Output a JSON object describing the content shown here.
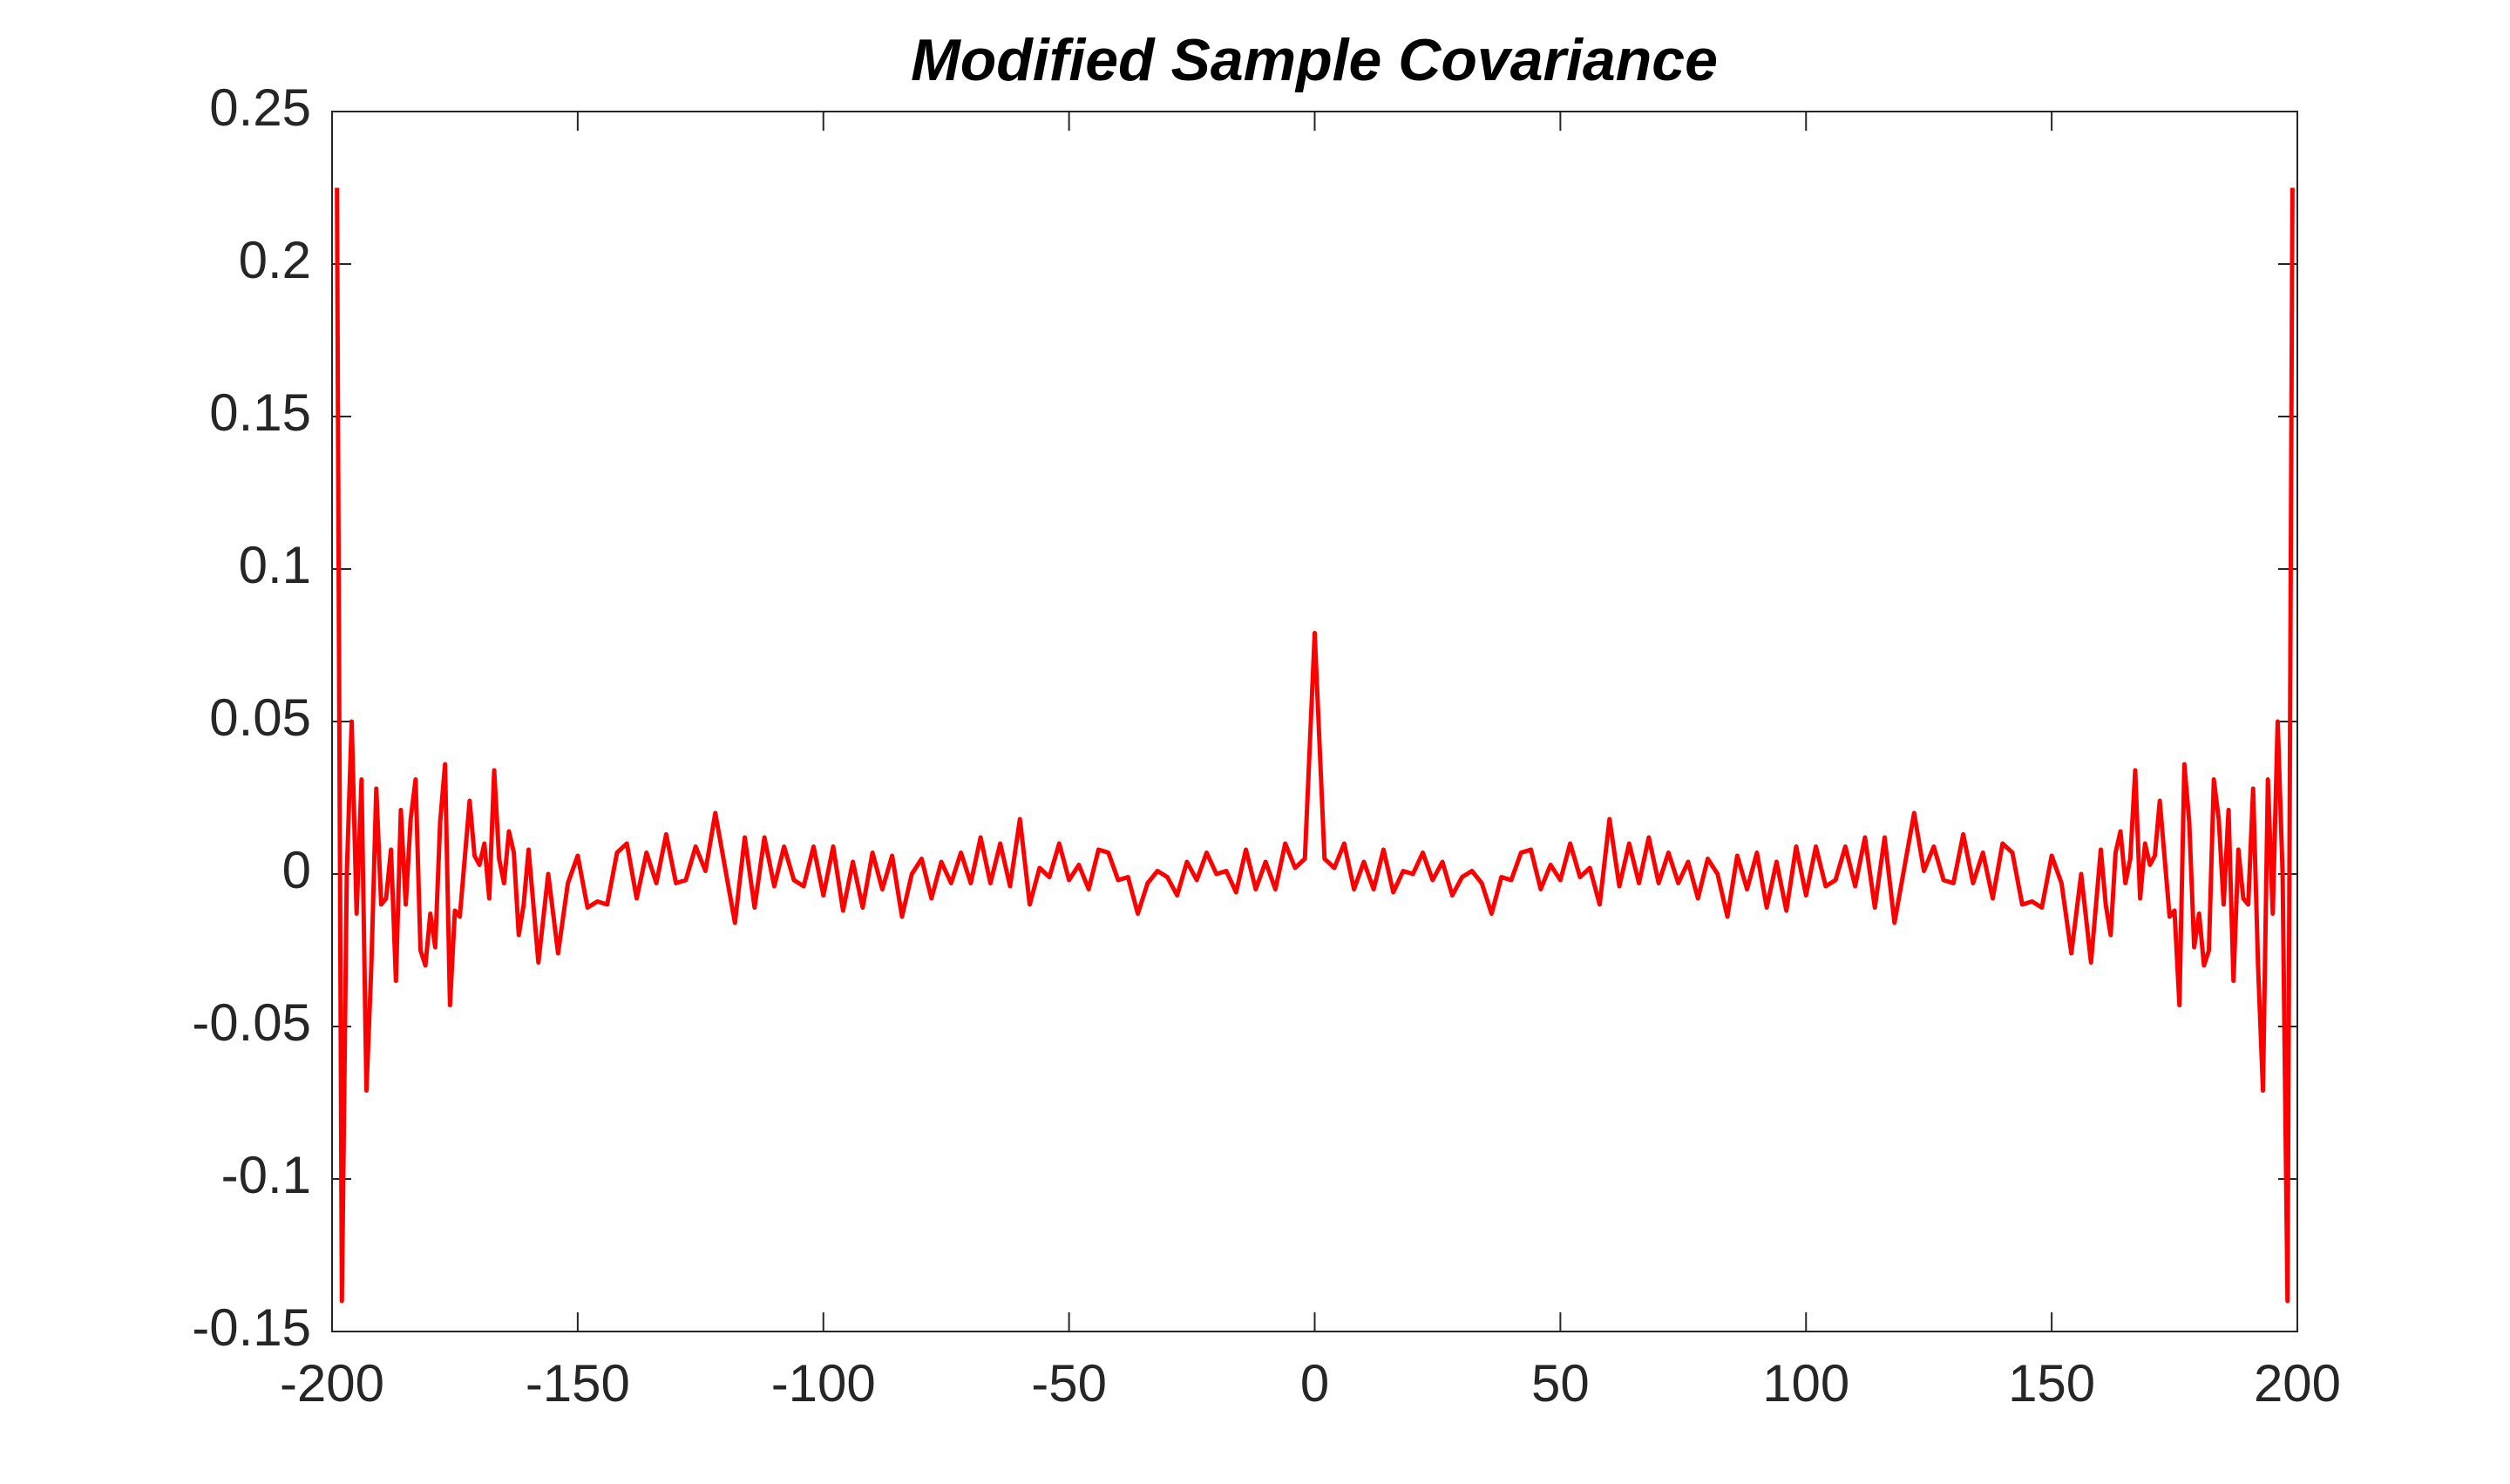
{
  "chart_data": {
    "type": "line",
    "title": "Modified Sample Covariance",
    "color": "#ff0000",
    "xlim": [
      -200,
      200
    ],
    "xticks": [
      -200,
      -150,
      -100,
      -50,
      0,
      50,
      100,
      150,
      200
    ],
    "ylim": [
      -0.15,
      0.25
    ],
    "yticks": [
      -0.15,
      -0.1,
      -0.05,
      0,
      0.05,
      0.1,
      0.15,
      0.2,
      0.25
    ],
    "grid": false,
    "x": [
      -199,
      -198,
      -197,
      -196,
      -195,
      -194,
      -193,
      -192,
      -191,
      -190,
      -189,
      -188,
      -187,
      -186,
      -185,
      -184,
      -183,
      -182,
      -181,
      -180,
      -179,
      -178,
      -177,
      -176,
      -175,
      -174,
      -173,
      -172,
      -171,
      -170,
      -169,
      -168,
      -167,
      -166,
      -165,
      -164,
      -163,
      -162,
      -161,
      -160,
      -158,
      -156,
      -154,
      -152,
      -150,
      -148,
      -146,
      -144,
      -142,
      -140,
      -138,
      -136,
      -134,
      -132,
      -130,
      -128,
      -126,
      -124,
      -122,
      -120,
      -118,
      -116,
      -114,
      -112,
      -110,
      -108,
      -106,
      -104,
      -102,
      -100,
      -98,
      -96,
      -94,
      -92,
      -90,
      -88,
      -86,
      -84,
      -82,
      -80,
      -78,
      -76,
      -74,
      -72,
      -70,
      -68,
      -66,
      -64,
      -62,
      -60,
      -58,
      -56,
      -54,
      -52,
      -50,
      -48,
      -46,
      -44,
      -42,
      -40,
      -38,
      -36,
      -34,
      -32,
      -30,
      -28,
      -26,
      -24,
      -22,
      -20,
      -18,
      -16,
      -14,
      -12,
      -10,
      -8,
      -6,
      -4,
      -2,
      0,
      2,
      4,
      6,
      8,
      10,
      12,
      14,
      16,
      18,
      20,
      22,
      24,
      26,
      28,
      30,
      32,
      34,
      36,
      38,
      40,
      42,
      44,
      46,
      48,
      50,
      52,
      54,
      56,
      58,
      60,
      62,
      64,
      66,
      68,
      70,
      72,
      74,
      76,
      78,
      80,
      82,
      84,
      86,
      88,
      90,
      92,
      94,
      96,
      98,
      100,
      102,
      104,
      106,
      108,
      110,
      112,
      114,
      116,
      118,
      120,
      122,
      124,
      126,
      128,
      130,
      132,
      134,
      136,
      138,
      140,
      142,
      144,
      146,
      148,
      150,
      152,
      154,
      156,
      158,
      160,
      161,
      162,
      163,
      164,
      165,
      166,
      167,
      168,
      169,
      170,
      171,
      172,
      173,
      174,
      175,
      176,
      177,
      178,
      179,
      180,
      181,
      182,
      183,
      184,
      185,
      186,
      187,
      188,
      189,
      190,
      191,
      192,
      193,
      194,
      195,
      196,
      197,
      198,
      199
    ],
    "values": [
      0.225,
      -0.14,
      0.0,
      0.05,
      -0.013,
      0.031,
      -0.071,
      -0.03,
      0.028,
      -0.01,
      -0.008,
      0.008,
      -0.035,
      0.021,
      -0.01,
      0.018,
      0.031,
      -0.025,
      -0.03,
      -0.013,
      -0.024,
      0.017,
      0.036,
      -0.043,
      -0.012,
      -0.014,
      0.005,
      0.024,
      0.006,
      0.003,
      0.01,
      -0.008,
      0.034,
      0.005,
      -0.003,
      0.014,
      0.007,
      -0.02,
      -0.01,
      0.008,
      -0.029,
      0.0,
      -0.026,
      -0.003,
      0.006,
      -0.011,
      -0.009,
      -0.01,
      0.007,
      0.01,
      -0.008,
      0.007,
      -0.003,
      0.013,
      -0.003,
      -0.002,
      0.009,
      0.001,
      0.02,
      0.002,
      -0.016,
      0.012,
      -0.011,
      0.012,
      -0.004,
      0.009,
      -0.002,
      -0.004,
      0.009,
      -0.007,
      0.009,
      -0.012,
      0.004,
      -0.011,
      0.007,
      -0.005,
      0.006,
      -0.014,
      0.0,
      0.005,
      -0.008,
      0.004,
      -0.003,
      0.007,
      -0.003,
      0.012,
      -0.003,
      0.01,
      -0.004,
      0.018,
      -0.01,
      0.002,
      -0.001,
      0.01,
      -0.002,
      0.003,
      -0.005,
      0.008,
      0.007,
      -0.002,
      -0.001,
      -0.013,
      -0.003,
      0.001,
      -0.001,
      -0.007,
      0.004,
      -0.002,
      0.007,
      0.0,
      0.001,
      -0.006,
      0.008,
      -0.005,
      0.004,
      -0.005,
      0.01,
      0.002,
      0.005,
      0.079,
      0.005,
      0.002,
      0.01,
      -0.005,
      0.004,
      -0.005,
      0.008,
      -0.006,
      0.001,
      0.0,
      0.007,
      -0.002,
      0.004,
      -0.007,
      -0.001,
      0.001,
      -0.003,
      -0.013,
      -0.001,
      -0.002,
      0.007,
      0.008,
      -0.005,
      0.003,
      -0.002,
      0.01,
      -0.001,
      0.002,
      -0.01,
      0.018,
      -0.004,
      0.01,
      -0.003,
      0.012,
      -0.003,
      0.007,
      -0.003,
      0.004,
      -0.008,
      0.005,
      0.0,
      -0.014,
      0.006,
      -0.005,
      0.007,
      -0.011,
      0.004,
      -0.012,
      0.009,
      -0.007,
      0.009,
      -0.004,
      -0.002,
      0.009,
      -0.004,
      0.012,
      -0.011,
      0.012,
      -0.016,
      0.002,
      0.02,
      0.001,
      0.009,
      -0.002,
      -0.003,
      0.013,
      -0.003,
      0.007,
      -0.008,
      0.01,
      0.007,
      -0.01,
      -0.009,
      -0.011,
      0.006,
      -0.003,
      -0.026,
      0.0,
      -0.029,
      0.008,
      -0.01,
      -0.02,
      0.007,
      0.014,
      -0.003,
      0.005,
      0.034,
      -0.008,
      0.01,
      0.003,
      0.006,
      0.024,
      0.005,
      -0.014,
      -0.012,
      -0.043,
      0.036,
      0.017,
      -0.024,
      -0.013,
      -0.03,
      -0.025,
      0.031,
      0.018,
      -0.01,
      0.021,
      -0.035,
      0.008,
      -0.008,
      -0.01,
      0.028,
      -0.03,
      -0.071,
      0.031,
      -0.013,
      0.05,
      0.0,
      -0.14,
      0.225
    ]
  }
}
